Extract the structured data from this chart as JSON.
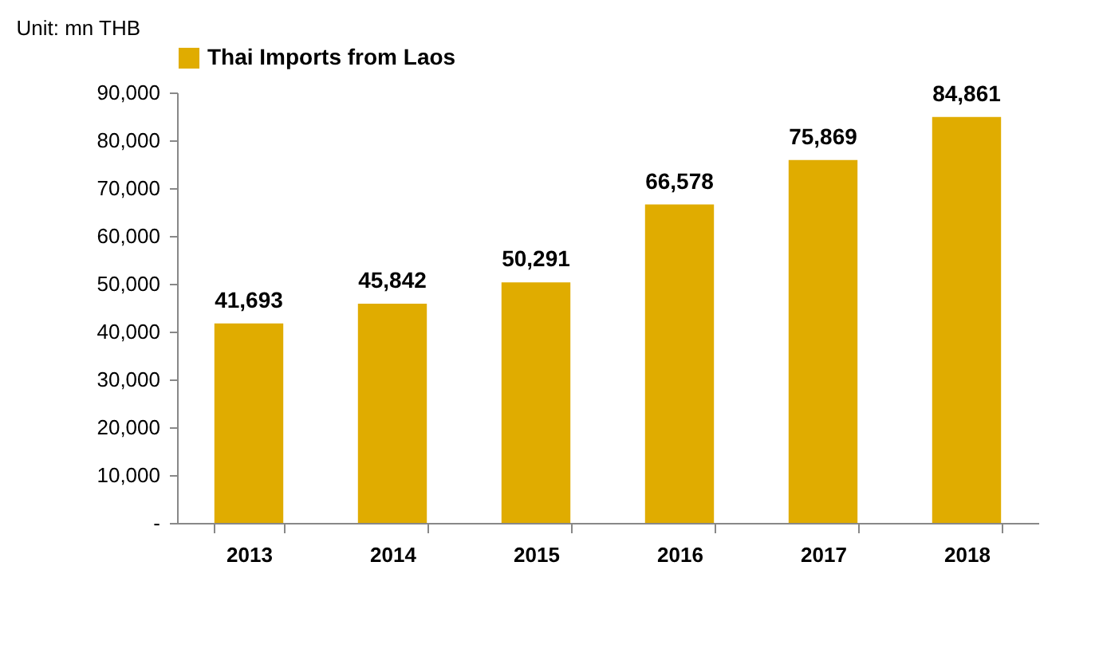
{
  "chart_data": {
    "type": "bar",
    "categories": [
      "2013",
      "2014",
      "2015",
      "2016",
      "2017",
      "2018"
    ],
    "series": [
      {
        "name": "Thai Imports from Laos",
        "color": "#e0ac00",
        "values": [
          41693,
          45842,
          50291,
          66578,
          75869,
          84861
        ],
        "value_labels": [
          "41,693",
          "45,842",
          "50,291",
          "66,578",
          "75,869",
          "84,861"
        ]
      }
    ],
    "ylim": [
      0,
      90000
    ],
    "yticks": [
      {
        "value": 0,
        "label": "-"
      },
      {
        "value": 10000,
        "label": "10,000"
      },
      {
        "value": 20000,
        "label": "20,000"
      },
      {
        "value": 30000,
        "label": "30,000"
      },
      {
        "value": 40000,
        "label": "40,000"
      },
      {
        "value": 50000,
        "label": "50,000"
      },
      {
        "value": 60000,
        "label": "60,000"
      },
      {
        "value": 70000,
        "label": "70,000"
      },
      {
        "value": 80000,
        "label": "80,000"
      },
      {
        "value": 90000,
        "label": "90,000"
      }
    ],
    "annotations": [
      "Unit: mn THB"
    ],
    "legend": "top",
    "grid": false
  }
}
